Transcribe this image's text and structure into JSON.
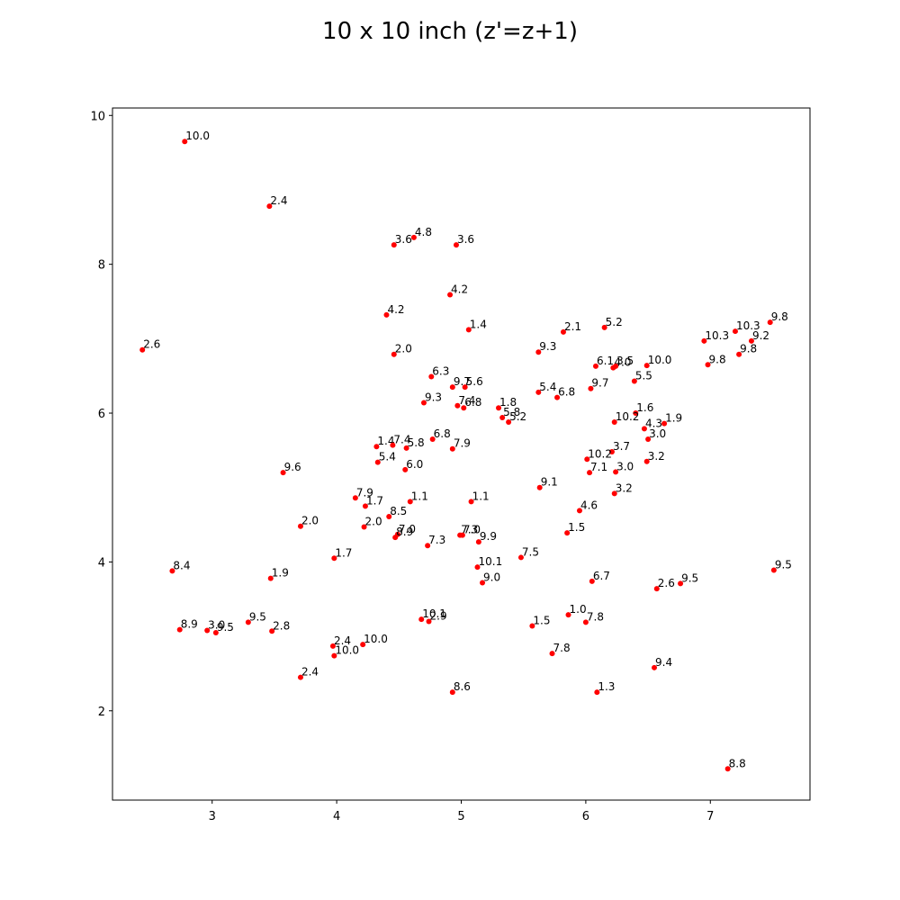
{
  "chart_data": {
    "type": "scatter",
    "title": "10 x 10 inch (z'=z+1)",
    "xlabel": "",
    "ylabel": "",
    "xlim": [
      2.2,
      7.8
    ],
    "ylim": [
      0.8,
      10.1
    ],
    "xticks": [
      3,
      4,
      5,
      6,
      7
    ],
    "yticks": [
      2,
      4,
      6,
      8,
      10
    ],
    "grid": false,
    "marker_color": "#ff0000",
    "points": [
      {
        "x": 2.78,
        "y": 9.65,
        "label": "10.0"
      },
      {
        "x": 3.46,
        "y": 8.78,
        "label": "2.4"
      },
      {
        "x": 4.62,
        "y": 8.36,
        "label": "4.8"
      },
      {
        "x": 4.46,
        "y": 8.26,
        "label": "3.6"
      },
      {
        "x": 4.96,
        "y": 8.26,
        "label": "3.6"
      },
      {
        "x": 4.91,
        "y": 7.59,
        "label": "4.2"
      },
      {
        "x": 4.4,
        "y": 7.32,
        "label": "4.2"
      },
      {
        "x": 5.06,
        "y": 7.12,
        "label": "1.4"
      },
      {
        "x": 5.82,
        "y": 7.09,
        "label": "2.1"
      },
      {
        "x": 6.15,
        "y": 7.15,
        "label": "5.2"
      },
      {
        "x": 7.48,
        "y": 7.22,
        "label": "9.8"
      },
      {
        "x": 7.2,
        "y": 7.1,
        "label": "10.3"
      },
      {
        "x": 6.95,
        "y": 6.97,
        "label": "10.3"
      },
      {
        "x": 7.33,
        "y": 6.97,
        "label": "9.2"
      },
      {
        "x": 7.23,
        "y": 6.79,
        "label": "9.8"
      },
      {
        "x": 2.44,
        "y": 6.85,
        "label": "2.6"
      },
      {
        "x": 4.46,
        "y": 6.79,
        "label": "2.0"
      },
      {
        "x": 5.62,
        "y": 6.82,
        "label": "9.3"
      },
      {
        "x": 6.08,
        "y": 6.63,
        "label": "6.1"
      },
      {
        "x": 6.22,
        "y": 6.61,
        "label": "4.0"
      },
      {
        "x": 6.24,
        "y": 6.63,
        "label": "3.5"
      },
      {
        "x": 6.49,
        "y": 6.64,
        "label": "10.0"
      },
      {
        "x": 6.98,
        "y": 6.65,
        "label": "9.8"
      },
      {
        "x": 4.76,
        "y": 6.49,
        "label": "6.3"
      },
      {
        "x": 6.39,
        "y": 6.43,
        "label": "5.5"
      },
      {
        "x": 4.93,
        "y": 6.35,
        "label": "9.7"
      },
      {
        "x": 5.03,
        "y": 6.35,
        "label": "5.6"
      },
      {
        "x": 6.04,
        "y": 6.33,
        "label": "9.7"
      },
      {
        "x": 5.62,
        "y": 6.28,
        "label": "5.4"
      },
      {
        "x": 5.77,
        "y": 6.21,
        "label": "6.8"
      },
      {
        "x": 4.7,
        "y": 6.14,
        "label": "9.3"
      },
      {
        "x": 4.97,
        "y": 6.1,
        "label": "7.4"
      },
      {
        "x": 5.02,
        "y": 6.07,
        "label": "6.8"
      },
      {
        "x": 5.3,
        "y": 6.07,
        "label": "1.8"
      },
      {
        "x": 6.4,
        "y": 6.0,
        "label": "1.6"
      },
      {
        "x": 5.33,
        "y": 5.94,
        "label": "5.8"
      },
      {
        "x": 5.38,
        "y": 5.88,
        "label": "5.2"
      },
      {
        "x": 6.23,
        "y": 5.88,
        "label": "10.2"
      },
      {
        "x": 6.63,
        "y": 5.86,
        "label": "1.9"
      },
      {
        "x": 6.47,
        "y": 5.79,
        "label": "4.3"
      },
      {
        "x": 6.5,
        "y": 5.65,
        "label": "3.0"
      },
      {
        "x": 4.77,
        "y": 5.65,
        "label": "6.8"
      },
      {
        "x": 4.32,
        "y": 5.55,
        "label": "1.4"
      },
      {
        "x": 4.45,
        "y": 5.57,
        "label": "7.4"
      },
      {
        "x": 4.56,
        "y": 5.53,
        "label": "5.8"
      },
      {
        "x": 4.93,
        "y": 5.52,
        "label": "7.9"
      },
      {
        "x": 6.21,
        "y": 5.48,
        "label": "3.7"
      },
      {
        "x": 6.01,
        "y": 5.38,
        "label": "10.2"
      },
      {
        "x": 6.49,
        "y": 5.35,
        "label": "3.2"
      },
      {
        "x": 4.33,
        "y": 5.34,
        "label": "5.4"
      },
      {
        "x": 4.55,
        "y": 5.24,
        "label": "6.0"
      },
      {
        "x": 6.03,
        "y": 5.2,
        "label": "7.1"
      },
      {
        "x": 6.24,
        "y": 5.21,
        "label": "3.0"
      },
      {
        "x": 3.57,
        "y": 5.2,
        "label": "9.6"
      },
      {
        "x": 5.63,
        "y": 5.0,
        "label": "9.1"
      },
      {
        "x": 6.23,
        "y": 4.92,
        "label": "3.2"
      },
      {
        "x": 4.15,
        "y": 4.86,
        "label": "7.9"
      },
      {
        "x": 4.59,
        "y": 4.81,
        "label": "1.1"
      },
      {
        "x": 5.08,
        "y": 4.81,
        "label": "1.1"
      },
      {
        "x": 4.23,
        "y": 4.75,
        "label": "1.7"
      },
      {
        "x": 5.95,
        "y": 4.69,
        "label": "4.6"
      },
      {
        "x": 4.42,
        "y": 4.61,
        "label": "8.5"
      },
      {
        "x": 3.71,
        "y": 4.48,
        "label": "2.0"
      },
      {
        "x": 4.22,
        "y": 4.47,
        "label": "2.0"
      },
      {
        "x": 5.85,
        "y": 4.39,
        "label": "1.5"
      },
      {
        "x": 4.49,
        "y": 4.37,
        "label": "7.0"
      },
      {
        "x": 4.47,
        "y": 4.33,
        "label": "8.9"
      },
      {
        "x": 4.99,
        "y": 4.36,
        "label": "7.3"
      },
      {
        "x": 5.01,
        "y": 4.36,
        "label": "7.0"
      },
      {
        "x": 5.14,
        "y": 4.27,
        "label": "9.9"
      },
      {
        "x": 4.73,
        "y": 4.22,
        "label": "7.3"
      },
      {
        "x": 5.48,
        "y": 4.06,
        "label": "7.5"
      },
      {
        "x": 3.98,
        "y": 4.05,
        "label": "1.7"
      },
      {
        "x": 5.13,
        "y": 3.93,
        "label": "10.1"
      },
      {
        "x": 7.51,
        "y": 3.89,
        "label": "9.5"
      },
      {
        "x": 2.68,
        "y": 3.88,
        "label": "8.4"
      },
      {
        "x": 3.47,
        "y": 3.78,
        "label": "1.9"
      },
      {
        "x": 6.05,
        "y": 3.74,
        "label": "6.7"
      },
      {
        "x": 5.17,
        "y": 3.72,
        "label": "9.0"
      },
      {
        "x": 6.76,
        "y": 3.71,
        "label": "9.5"
      },
      {
        "x": 6.57,
        "y": 3.64,
        "label": "2.6"
      },
      {
        "x": 5.86,
        "y": 3.29,
        "label": "1.0"
      },
      {
        "x": 4.68,
        "y": 3.23,
        "label": "10.1"
      },
      {
        "x": 4.74,
        "y": 3.2,
        "label": "2.9"
      },
      {
        "x": 6.0,
        "y": 3.19,
        "label": "7.8"
      },
      {
        "x": 3.29,
        "y": 3.19,
        "label": "9.5"
      },
      {
        "x": 5.57,
        "y": 3.14,
        "label": "1.5"
      },
      {
        "x": 2.74,
        "y": 3.09,
        "label": "8.9"
      },
      {
        "x": 2.96,
        "y": 3.08,
        "label": "3.0"
      },
      {
        "x": 3.03,
        "y": 3.05,
        "label": "9.5"
      },
      {
        "x": 3.48,
        "y": 3.07,
        "label": "2.8"
      },
      {
        "x": 4.21,
        "y": 2.89,
        "label": "10.0"
      },
      {
        "x": 3.97,
        "y": 2.87,
        "label": "2.4"
      },
      {
        "x": 3.98,
        "y": 2.74,
        "label": "10.0"
      },
      {
        "x": 5.73,
        "y": 2.77,
        "label": "7.8"
      },
      {
        "x": 6.55,
        "y": 2.58,
        "label": "9.4"
      },
      {
        "x": 3.71,
        "y": 2.45,
        "label": "2.4"
      },
      {
        "x": 4.93,
        "y": 2.25,
        "label": "8.6"
      },
      {
        "x": 6.09,
        "y": 2.25,
        "label": "1.3"
      },
      {
        "x": 7.14,
        "y": 1.22,
        "label": "8.8"
      }
    ]
  }
}
